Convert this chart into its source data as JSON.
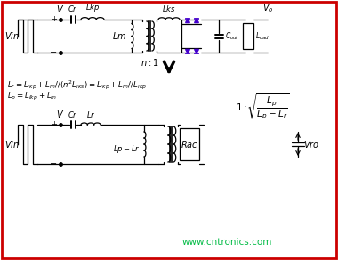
{
  "bg_color": "#ffffff",
  "border_color": "#cc0000",
  "border_linewidth": 2.0,
  "fig_width": 3.8,
  "fig_height": 2.92,
  "watermark": "www.cntronics.com",
  "watermark_color": "#00bb44",
  "watermark_fontsize": 7.5,
  "diode_color": "#4400cc",
  "top_circuit": {
    "vin_label": "$Vin$",
    "v_label": "$V$",
    "cr_label": "$Cr$",
    "lkp_label": "$Lkp$",
    "lks_label": "$Lks$",
    "lm_label": "$Lm$",
    "cout_label": "$C_{out}$",
    "load_label": "$L_{oad}$",
    "vo_label": "$V_o$",
    "ratio_label": "$n:1$"
  },
  "equations": {
    "eq1": "$L_r = L_{lkp} + L_m //(n^2 L_{lks}) = L_{lkp} + L_m // L_{lkp}$",
    "eq2": "$L_p = L_{lkp} + L_m$"
  },
  "bottom_circuit": {
    "vin_label": "$Vin$",
    "v_label": "$V$",
    "cr_label": "$Cr$",
    "lr_label": "$Lr$",
    "lplr_label": "$Lp-Lr$",
    "rac_label": "$Rac$",
    "vro_label": "$Vro$"
  }
}
